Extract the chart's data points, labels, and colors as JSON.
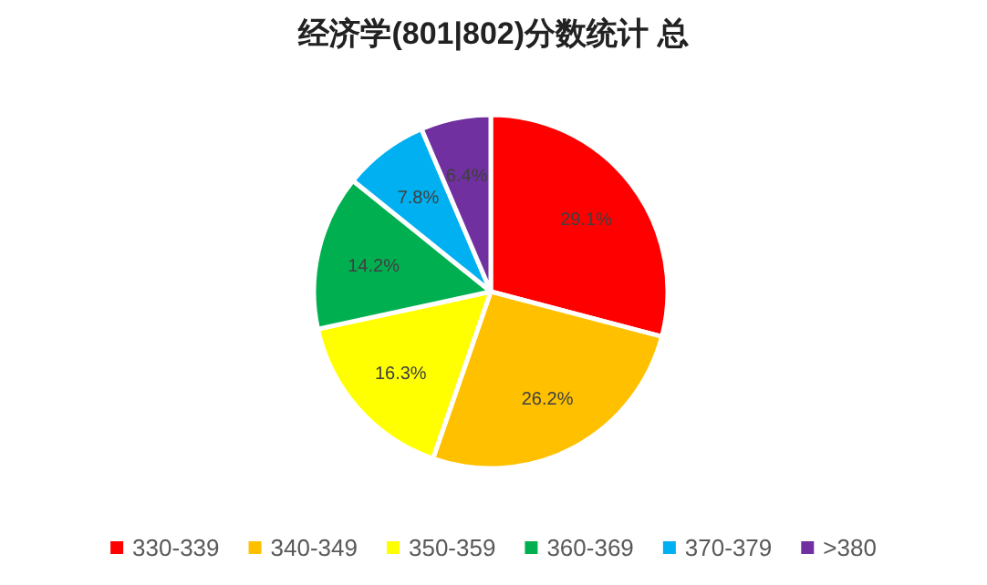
{
  "chart_data": {
    "type": "pie",
    "title": "经济学(801|802)分数统计 总",
    "categories": [
      "330-339",
      "340-349",
      "350-359",
      "360-369",
      "370-379",
      ">380"
    ],
    "values": [
      29.1,
      26.2,
      16.3,
      14.2,
      7.8,
      6.4
    ],
    "colors": [
      "#ff0000",
      "#ffc000",
      "#ffff00",
      "#00b050",
      "#00b0f0",
      "#7030a0"
    ],
    "value_labels": [
      "29.1%",
      "26.2%",
      "16.3%",
      "14.2%",
      "7.8%",
      "6.4%"
    ],
    "legend": "bottom"
  }
}
